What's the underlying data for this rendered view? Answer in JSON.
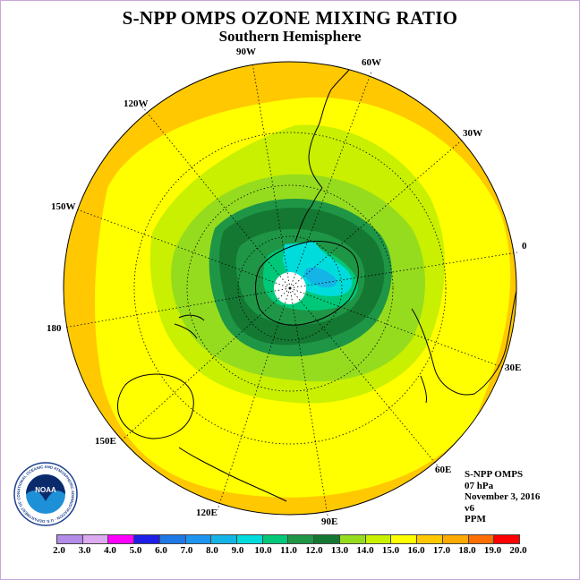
{
  "title": "S-NPP OMPS OZONE MIXING RATIO",
  "subtitle": "Southern Hemisphere",
  "longitude_labels": [
    "90W",
    "60W",
    "120W",
    "30W",
    "150W",
    "0",
    "180",
    "30E",
    "150E",
    "60E",
    "120E",
    "90E"
  ],
  "info": {
    "instrument": "S-NPP OMPS",
    "level": "07 hPa",
    "date": "November 3, 2016",
    "version": "v6",
    "units": "PPM"
  },
  "logo": {
    "text": "NOAA",
    "ring_text": "NATIONAL OCEANIC AND ATMOSPHERIC ADMINISTRATION · U.S. DEPARTMENT OF COMMERCE"
  },
  "colorbar": {
    "ticks": [
      "2.0",
      "3.0",
      "4.0",
      "5.0",
      "6.0",
      "7.0",
      "8.0",
      "9.0",
      "10.0",
      "11.0",
      "12.0",
      "13.0",
      "14.0",
      "15.0",
      "16.0",
      "17.0",
      "18.0",
      "19.0",
      "20.0"
    ],
    "colors": [
      "#b28ce6",
      "#dcaaf0",
      "#ff00ff",
      "#1e1ee6",
      "#1e78e6",
      "#1e96f0",
      "#14b4e6",
      "#00dcdc",
      "#00c878",
      "#1e9646",
      "#147832",
      "#96dc1e",
      "#c8f000",
      "#ffff00",
      "#ffc800",
      "#ffaa00",
      "#ff6e00",
      "#ff0000",
      "#8c5a3c"
    ]
  }
}
